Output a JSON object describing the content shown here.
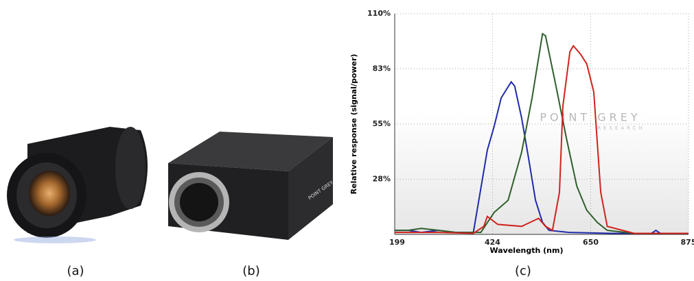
{
  "captions": [
    "(a)",
    "(b)",
    "(c)"
  ],
  "camera_label": "POINT GREY",
  "chart_data": {
    "type": "line",
    "xlabel": "Wavelength (nm)",
    "ylabel": "Relative response (signal/power)",
    "watermark": "POINT GREY",
    "watermark_sub": "RESEARCH",
    "xlim": [
      199,
      875
    ],
    "ylim": [
      0,
      110
    ],
    "xticks": [
      199,
      424,
      650,
      875
    ],
    "yticks": [
      {
        "value": 27.5,
        "label": "28%"
      },
      {
        "value": 55,
        "label": "55%"
      },
      {
        "value": 82.5,
        "label": "83%"
      },
      {
        "value": 110,
        "label": "110%"
      }
    ],
    "grid": true,
    "series": [
      {
        "color": "#1f2aa8",
        "x": [
          199,
          230,
          260,
          300,
          340,
          380,
          412,
          428,
          444,
          467,
          475,
          491,
          507,
          523,
          539,
          554,
          600,
          700,
          790,
          800,
          810,
          875
        ],
        "values": [
          2,
          2,
          1,
          2,
          1,
          1,
          42,
          54,
          68,
          76,
          74,
          58,
          38,
          17,
          6,
          2,
          1,
          0.5,
          0.5,
          2,
          0.5,
          0.5
        ]
      },
      {
        "color": "#2e5e2a",
        "x": [
          199,
          230,
          260,
          300,
          340,
          397,
          428,
          460,
          491,
          515,
          539,
          546,
          570,
          594,
          618,
          641,
          665,
          688,
          750,
          875
        ],
        "values": [
          2,
          2,
          3,
          2,
          1,
          1,
          11,
          17,
          41,
          68,
          100,
          99,
          74,
          48,
          24,
          12,
          6,
          2,
          0.5,
          0.5
        ]
      },
      {
        "color": "#d0221c",
        "x": [
          199,
          260,
          300,
          380,
          404,
          412,
          436,
          491,
          530,
          546,
          562,
          578,
          586,
          602,
          610,
          626,
          641,
          657,
          673,
          688,
          750,
          875
        ],
        "values": [
          1,
          1,
          1,
          0.5,
          4,
          9,
          5,
          4,
          8,
          4,
          2,
          21,
          64,
          91,
          94,
          90,
          85,
          71,
          21,
          4,
          0.5,
          0.5
        ]
      }
    ]
  }
}
